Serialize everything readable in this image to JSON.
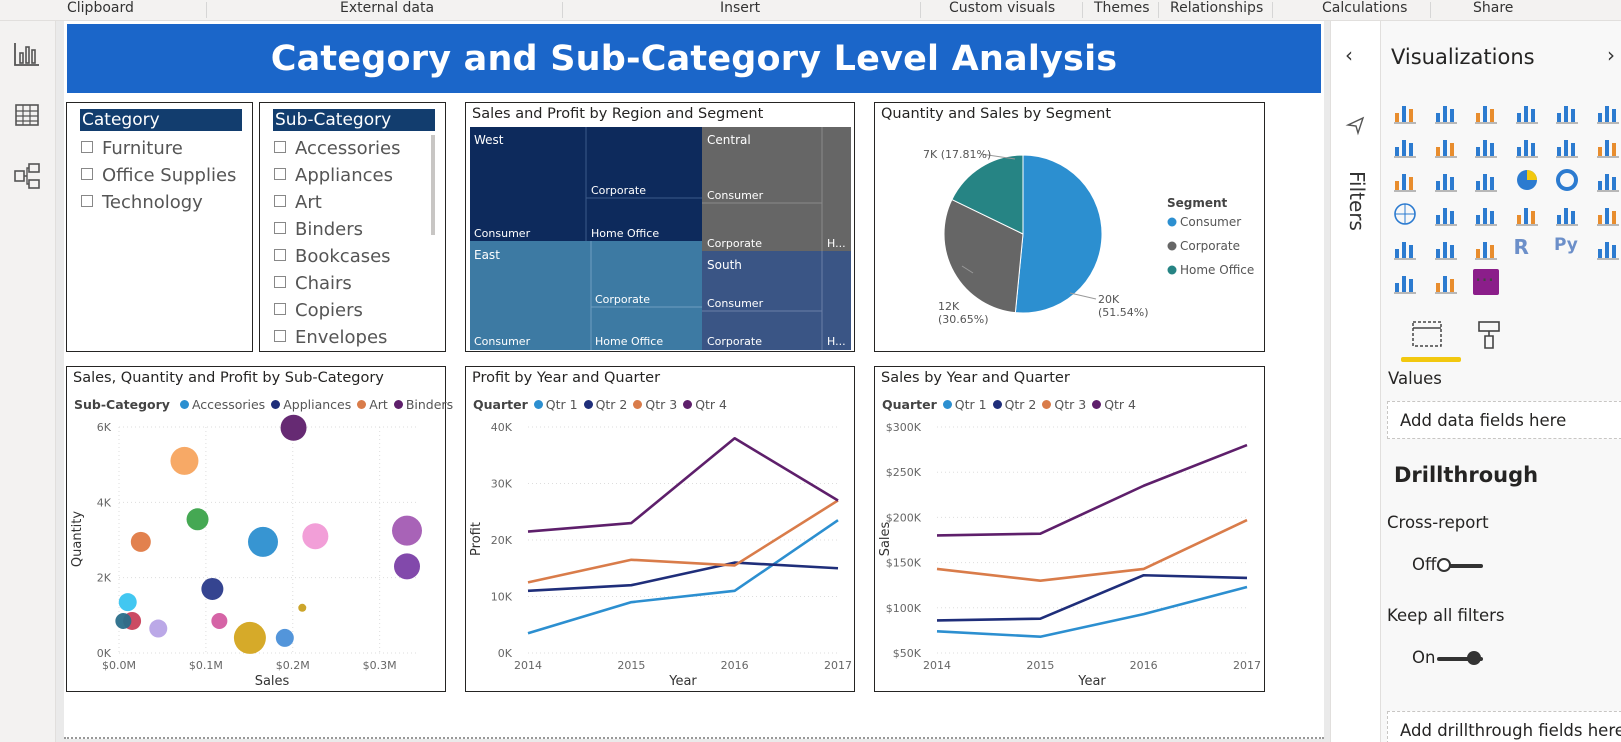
{
  "ribbon": {
    "groups": [
      "Clipboard",
      "External data",
      "Insert",
      "Custom visuals",
      "Themes",
      "Relationships",
      "Calculations",
      "Share"
    ]
  },
  "left_rail": {
    "icons": [
      "report-view-icon",
      "data-view-icon",
      "model-view-icon"
    ]
  },
  "report": {
    "title": "Category and Sub-Category Level Analysis"
  },
  "category_slicer": {
    "header": "Category",
    "items": [
      "Furniture",
      "Office Supplies",
      "Technology"
    ]
  },
  "subcategory_slicer": {
    "header": "Sub-Category",
    "items": [
      "Accessories",
      "Appliances",
      "Art",
      "Binders",
      "Bookcases",
      "Chairs",
      "Copiers",
      "Envelopes"
    ]
  },
  "treemap": {
    "title": "Sales and Profit by Region and Segment",
    "regions": [
      {
        "name": "West",
        "segments": [
          "Consumer",
          "Corporate",
          "Home Office"
        ]
      },
      {
        "name": "East",
        "segments": [
          "Consumer",
          "Corporate",
          "Home Office"
        ]
      },
      {
        "name": "Central",
        "segments": [
          "Consumer",
          "Corporate",
          "H..."
        ]
      },
      {
        "name": "South",
        "segments": [
          "Consumer",
          "Corporate",
          "H..."
        ]
      }
    ],
    "colors": {
      "West": "#0d2a5c",
      "East": "#3d7aa3",
      "Central": "#666666",
      "South": "#3a5585"
    }
  },
  "pie": {
    "title": "Quantity and Sales by Segment",
    "legend_title": "Segment",
    "labels": [
      "20K\n(51.54%)",
      "12K\n(30.65%)",
      "7K (17.81%)"
    ],
    "chart_data": {
      "type": "pie",
      "slices": [
        {
          "name": "Consumer",
          "value": 51.54,
          "color": "#2c8fd0"
        },
        {
          "name": "Corporate",
          "value": 30.65,
          "color": "#666666"
        },
        {
          "name": "Home Office",
          "value": 17.81,
          "color": "#268484"
        }
      ]
    }
  },
  "scatter": {
    "title": "Sales, Quantity and Profit by Sub-Category",
    "legend_label": "Sub-Category",
    "legend_items": [
      {
        "name": "Accessories",
        "color": "#2c8fd0"
      },
      {
        "name": "Appliances",
        "color": "#1f2e7a"
      },
      {
        "name": "Art",
        "color": "#d97c4a"
      },
      {
        "name": "Binders",
        "color": "#5e1f6b"
      }
    ],
    "xlabel": "Sales",
    "ylabel": "Quantity",
    "xticks": [
      "$0.0M",
      "$0.1M",
      "$0.2M",
      "$0.3M"
    ],
    "yticks": [
      "0K",
      "2K",
      "4K",
      "6K"
    ],
    "chart_data": {
      "type": "scatter",
      "xlim": [
        0,
        0.33
      ],
      "ylim": [
        0,
        6000
      ],
      "points": [
        {
          "x": 0.075,
          "y": 5100,
          "r": 14,
          "color": "#f7a45e"
        },
        {
          "x": 0.2,
          "y": 5980,
          "r": 13,
          "color": "#5e1f6b"
        },
        {
          "x": 0.09,
          "y": 3550,
          "r": 11,
          "color": "#3ba34a"
        },
        {
          "x": 0.025,
          "y": 2950,
          "r": 10,
          "color": "#e07a45"
        },
        {
          "x": 0.165,
          "y": 2950,
          "r": 15,
          "color": "#2c8fd0"
        },
        {
          "x": 0.225,
          "y": 3100,
          "r": 13,
          "color": "#f19ad6"
        },
        {
          "x": 0.33,
          "y": 3250,
          "r": 15,
          "color": "#a35bb3"
        },
        {
          "x": 0.33,
          "y": 2300,
          "r": 13,
          "color": "#7b3fa6"
        },
        {
          "x": 0.107,
          "y": 1700,
          "r": 11,
          "color": "#2a3a8a"
        },
        {
          "x": 0.01,
          "y": 1350,
          "r": 9,
          "color": "#38c4f0"
        },
        {
          "x": 0.015,
          "y": 850,
          "r": 9,
          "color": "#c8415b"
        },
        {
          "x": 0.005,
          "y": 850,
          "r": 8,
          "color": "#2a6e8a"
        },
        {
          "x": 0.045,
          "y": 650,
          "r": 9,
          "color": "#b7a3e6"
        },
        {
          "x": 0.115,
          "y": 850,
          "r": 8,
          "color": "#d35ca1"
        },
        {
          "x": 0.15,
          "y": 400,
          "r": 16,
          "color": "#d4a51d"
        },
        {
          "x": 0.19,
          "y": 400,
          "r": 9,
          "color": "#4a8fd8"
        },
        {
          "x": 0.21,
          "y": 1200,
          "r": 4,
          "color": "#c9a020"
        }
      ]
    }
  },
  "profit_line": {
    "title": "Profit by Year and Quarter",
    "legend_label": "Quarter",
    "xlabel": "Year",
    "ylabel": "Profit",
    "yticks": [
      "0K",
      "10K",
      "20K",
      "30K",
      "40K"
    ],
    "chart_data": {
      "type": "line",
      "x": [
        "2014",
        "2015",
        "2016",
        "2017"
      ],
      "ylim": [
        0,
        40000
      ],
      "series": [
        {
          "name": "Qtr 1",
          "color": "#2c8fd0",
          "values": [
            3500,
            9000,
            11000,
            23500
          ]
        },
        {
          "name": "Qtr 2",
          "color": "#1f2e7a",
          "values": [
            11000,
            12000,
            16000,
            15000
          ]
        },
        {
          "name": "Qtr 3",
          "color": "#d97c4a",
          "values": [
            12500,
            16500,
            15500,
            27000
          ]
        },
        {
          "name": "Qtr 4",
          "color": "#5e1f6b",
          "values": [
            21500,
            23000,
            38000,
            27000
          ]
        }
      ]
    }
  },
  "sales_line": {
    "title": "Sales by Year and Quarter",
    "legend_label": "Quarter",
    "xlabel": "Year",
    "ylabel": "Sales",
    "yticks": [
      "$50K",
      "$100K",
      "$150K",
      "$200K",
      "$250K",
      "$300K"
    ],
    "chart_data": {
      "type": "line",
      "x": [
        "2014",
        "2015",
        "2016",
        "2017"
      ],
      "ylim": [
        50000,
        300000
      ],
      "series": [
        {
          "name": "Qtr 1",
          "color": "#2c8fd0",
          "values": [
            74000,
            68000,
            93000,
            123000
          ]
        },
        {
          "name": "Qtr 2",
          "color": "#1f2e7a",
          "values": [
            86000,
            88000,
            136000,
            133000
          ]
        },
        {
          "name": "Qtr 3",
          "color": "#d97c4a",
          "values": [
            143000,
            130000,
            143000,
            197000
          ]
        },
        {
          "name": "Qtr 4",
          "color": "#5e1f6b",
          "values": [
            180000,
            182000,
            235000,
            280000
          ]
        }
      ]
    }
  },
  "filters_pane": {
    "label": "Filters"
  },
  "viz_pane": {
    "title": "Visualizations",
    "more": "···",
    "values_label": "Values",
    "add_fields": "Add data fields here",
    "drillthrough_title": "Drillthrough",
    "cross_report_label": "Cross-report",
    "cross_report_state": "Off",
    "keep_filters_label": "Keep all filters",
    "keep_filters_state": "On",
    "add_drill_fields": "Add drillthrough fields here"
  }
}
